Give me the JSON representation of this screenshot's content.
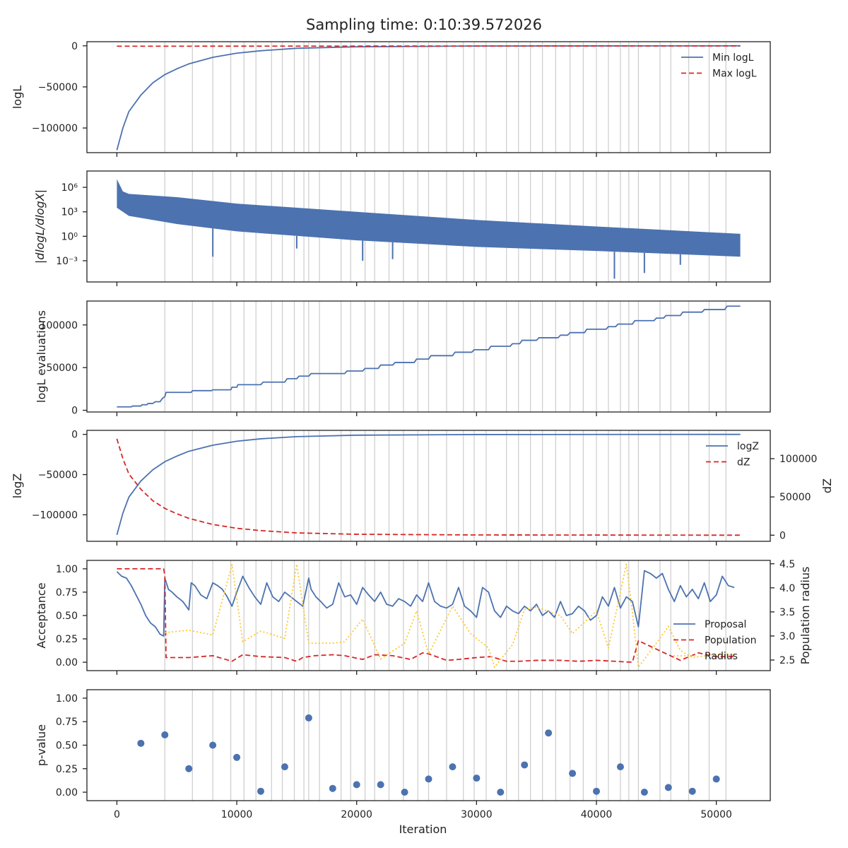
{
  "title": "Sampling time: 0:10:39.572026",
  "colors": {
    "blue": "#4c72b0",
    "red": "#d62728",
    "yellow": "#ffc72c",
    "grid": "#cccccc",
    "axis": "#222222"
  },
  "chart_data": [
    {
      "id": "logl",
      "type": "line",
      "ylabel": "logL",
      "ylim": [
        -130000,
        5000
      ],
      "yticks": [
        0,
        -50000,
        -100000
      ],
      "ytick_labels": [
        "0",
        "−50000",
        "−100000"
      ],
      "legend": {
        "position": "top-right",
        "entries": [
          "Min logL",
          "Max logL"
        ]
      },
      "series": [
        {
          "name": "Min logL",
          "style": "solid",
          "color": "#4c72b0",
          "x": [
            0,
            500,
            1000,
            2000,
            3000,
            4000,
            5000,
            6000,
            8000,
            10000,
            12000,
            15000,
            20000,
            30000,
            52000
          ],
          "y": [
            -127000,
            -100000,
            -80000,
            -60000,
            -45000,
            -35000,
            -28000,
            -22000,
            -14000,
            -9000,
            -6000,
            -3000,
            -1200,
            -300,
            0
          ]
        },
        {
          "name": "Max logL",
          "style": "dashed",
          "color": "#d62728",
          "x": [
            0,
            52000
          ],
          "y": [
            -500,
            -100
          ]
        }
      ]
    },
    {
      "id": "dlogl",
      "type": "line",
      "ylabel": "|dlogL/dlogX|",
      "yscale": "log",
      "yticks": [
        6,
        3,
        0,
        -3
      ],
      "ytick_labels": [
        "10⁶",
        "10³",
        "10⁰",
        "10⁻³"
      ],
      "band": {
        "x": [
          0,
          500,
          1000,
          5000,
          10000,
          20000,
          30000,
          40000,
          52000
        ],
        "upper_log10": [
          7,
          5.5,
          5.2,
          4.8,
          4.0,
          3.0,
          2.0,
          1.2,
          0.3
        ],
        "lower_log10": [
          3.5,
          3.0,
          2.5,
          1.5,
          0.6,
          -0.5,
          -1.3,
          -1.8,
          -2.5
        ]
      },
      "spikes": [
        {
          "x": 8000,
          "y_log10": -2.5
        },
        {
          "x": 15000,
          "y_log10": -1.5
        },
        {
          "x": 20500,
          "y_log10": -3.0
        },
        {
          "x": 23000,
          "y_log10": -2.8
        },
        {
          "x": 41500,
          "y_log10": -5.2
        },
        {
          "x": 44000,
          "y_log10": -4.5
        },
        {
          "x": 47000,
          "y_log10": -3.5
        }
      ]
    },
    {
      "id": "evals",
      "type": "line",
      "ylabel": "logL evaluations",
      "ylim": [
        -2000,
        128000
      ],
      "yticks": [
        0,
        50000,
        100000
      ],
      "ytick_labels": [
        "0",
        "50000",
        "100000"
      ],
      "series": [
        {
          "name": "",
          "color": "#4c72b0",
          "x": [
            0,
            1200,
            1300,
            2000,
            2100,
            2500,
            2600,
            3000,
            3200,
            3600,
            3800,
            4000,
            4100,
            6200,
            6300,
            7900,
            8000,
            9500,
            9600,
            10000,
            10100,
            12000,
            12200,
            14000,
            14200,
            15000,
            15200,
            16000,
            16200,
            19000,
            19200,
            20500,
            20700,
            21800,
            22000,
            23000,
            23200,
            24800,
            25000,
            26000,
            26200,
            28000,
            28200,
            29600,
            29800,
            31000,
            31200,
            32800,
            33000,
            33600,
            33800,
            35000,
            35200,
            36800,
            37000,
            37600,
            37800,
            39000,
            39200,
            40800,
            41000,
            41600,
            41800,
            43000,
            43200,
            44800,
            45000,
            45600,
            45800,
            47000,
            47200,
            48800,
            49000,
            50700,
            50900,
            52000
          ],
          "y": [
            4000,
            4000,
            5000,
            5000,
            6500,
            6500,
            8000,
            8000,
            10000,
            10000,
            14000,
            16000,
            21000,
            21000,
            23000,
            23000,
            24000,
            24000,
            27000,
            27000,
            30000,
            30000,
            33000,
            33000,
            37000,
            37000,
            40000,
            40000,
            43000,
            43000,
            46000,
            46000,
            49000,
            49000,
            53000,
            53000,
            56000,
            56000,
            60000,
            60000,
            64000,
            64000,
            68000,
            68000,
            71000,
            71000,
            75000,
            75000,
            78000,
            78000,
            82000,
            82000,
            85000,
            85000,
            88000,
            88000,
            91000,
            91000,
            95000,
            95000,
            98000,
            98000,
            101000,
            101000,
            105000,
            105000,
            108000,
            108000,
            111000,
            111000,
            115000,
            115000,
            118000,
            118000,
            122000,
            122000
          ]
        }
      ]
    },
    {
      "id": "logz",
      "type": "line",
      "ylabel": "logZ",
      "ylabel_right": "dZ",
      "ylim": [
        -133000,
        5000
      ],
      "ylim_right": [
        -8000,
        137000
      ],
      "yticks": [
        0,
        -50000,
        -100000
      ],
      "ytick_labels": [
        "0",
        "−50000",
        "−100000"
      ],
      "yticks_right": [
        0,
        50000,
        100000
      ],
      "ytick_labels_right": [
        "0",
        "50000",
        "100000"
      ],
      "legend": {
        "position": "top-right",
        "entries": [
          "logZ",
          "dZ"
        ]
      },
      "series": [
        {
          "name": "logZ",
          "style": "solid",
          "color": "#4c72b0",
          "axis": "left",
          "x": [
            0,
            500,
            1000,
            2000,
            3000,
            4000,
            5000,
            6000,
            8000,
            10000,
            12000,
            15000,
            20000,
            30000,
            52000
          ],
          "y": [
            -125000,
            -98000,
            -78000,
            -58000,
            -44000,
            -34000,
            -27000,
            -21000,
            -13500,
            -8500,
            -5500,
            -2800,
            -1000,
            -200,
            0
          ]
        },
        {
          "name": "dZ",
          "style": "dashed",
          "color": "#d62728",
          "axis": "right",
          "x": [
            0,
            500,
            1000,
            2000,
            3000,
            4000,
            5000,
            6000,
            8000,
            10000,
            12000,
            15000,
            20000,
            30000,
            52000
          ],
          "y": [
            126000,
            100000,
            80000,
            60000,
            45000,
            35000,
            28000,
            22000,
            14000,
            9000,
            6000,
            3000,
            1200,
            300,
            0
          ]
        }
      ]
    },
    {
      "id": "accept",
      "type": "line",
      "ylabel": "Acceptance",
      "ylabel_right": "Population radius",
      "ylim": [
        -0.09,
        1.09
      ],
      "ylim_right": [
        2.28,
        4.57
      ],
      "yticks": [
        0,
        0.25,
        0.5,
        0.75,
        1.0
      ],
      "ytick_labels": [
        "0.00",
        "0.25",
        "0.50",
        "0.75",
        "1.00"
      ],
      "yticks_right": [
        2.5,
        3.0,
        3.5,
        4.0,
        4.5
      ],
      "ytick_labels_right": [
        "2.5",
        "3.0",
        "3.5",
        "4.0",
        "4.5"
      ],
      "legend": {
        "position": "lower-right",
        "entries": [
          "Proposal",
          "Population",
          "Radius"
        ]
      },
      "series": [
        {
          "name": "Proposal",
          "style": "solid",
          "color": "#4c72b0",
          "axis": "left",
          "x": [
            0,
            400,
            800,
            1200,
            1600,
            2000,
            2400,
            2800,
            3200,
            3600,
            3900,
            4000,
            4300,
            4600,
            5000,
            5500,
            6000,
            6200,
            6500,
            7000,
            7500,
            8000,
            8400,
            8800,
            9200,
            9600,
            10000,
            10500,
            11000,
            11500,
            12000,
            12500,
            13000,
            13500,
            14000,
            14500,
            15000,
            15500,
            16000,
            16200,
            16600,
            17000,
            17500,
            18000,
            18500,
            19000,
            19500,
            20000,
            20500,
            21000,
            21500,
            22000,
            22500,
            23000,
            23500,
            24000,
            24500,
            25000,
            25500,
            26000,
            26500,
            27000,
            27500,
            28000,
            28500,
            29000,
            29500,
            30000,
            30500,
            31000,
            31500,
            32000,
            32500,
            33000,
            33500,
            34000,
            34500,
            35000,
            35500,
            36000,
            36500,
            37000,
            37500,
            38000,
            38500,
            39000,
            39500,
            40000,
            40500,
            41000,
            41500,
            42000,
            42500,
            43000,
            43500,
            44000,
            44500,
            45000,
            45500,
            46000,
            46500,
            47000,
            47500,
            48000,
            48500,
            49000,
            49500,
            50000,
            50500,
            51000,
            51500
          ],
          "y": [
            0.97,
            0.92,
            0.9,
            0.82,
            0.72,
            0.62,
            0.5,
            0.42,
            0.38,
            0.3,
            0.28,
            0.9,
            0.78,
            0.75,
            0.7,
            0.65,
            0.56,
            0.85,
            0.82,
            0.72,
            0.68,
            0.85,
            0.82,
            0.78,
            0.7,
            0.6,
            0.75,
            0.92,
            0.8,
            0.7,
            0.62,
            0.85,
            0.7,
            0.65,
            0.75,
            0.7,
            0.65,
            0.6,
            0.9,
            0.78,
            0.7,
            0.65,
            0.58,
            0.62,
            0.85,
            0.7,
            0.72,
            0.62,
            0.8,
            0.72,
            0.65,
            0.75,
            0.62,
            0.6,
            0.68,
            0.65,
            0.6,
            0.72,
            0.65,
            0.85,
            0.65,
            0.6,
            0.58,
            0.62,
            0.8,
            0.6,
            0.55,
            0.48,
            0.8,
            0.75,
            0.55,
            0.48,
            0.6,
            0.55,
            0.52,
            0.6,
            0.55,
            0.62,
            0.5,
            0.55,
            0.48,
            0.65,
            0.5,
            0.52,
            0.6,
            0.55,
            0.45,
            0.5,
            0.7,
            0.6,
            0.8,
            0.58,
            0.7,
            0.65,
            0.38,
            0.98,
            0.95,
            0.9,
            0.95,
            0.78,
            0.65,
            0.82,
            0.7,
            0.78,
            0.68,
            0.85,
            0.65,
            0.72,
            0.92,
            0.82,
            0.8
          ]
        },
        {
          "name": "Population",
          "style": "dashed",
          "color": "#d62728",
          "axis": "left",
          "x": [
            0,
            3900,
            4000,
            4100,
            6000,
            8000,
            9600,
            10500,
            12000,
            14000,
            15000,
            15500,
            16500,
            18000,
            19000,
            20500,
            21500,
            23000,
            24500,
            25500,
            26000,
            27500,
            28500,
            30000,
            31200,
            32500,
            33500,
            35000,
            37000,
            38500,
            40000,
            41500,
            43000,
            43500,
            44500,
            46000,
            47000,
            48500,
            50000,
            51500
          ],
          "y": [
            1.0,
            1.0,
            0.93,
            0.05,
            0.05,
            0.07,
            0.01,
            0.08,
            0.06,
            0.05,
            0.01,
            0.05,
            0.07,
            0.08,
            0.07,
            0.03,
            0.08,
            0.07,
            0.03,
            0.1,
            0.09,
            0.02,
            0.03,
            0.05,
            0.06,
            0.01,
            0.01,
            0.02,
            0.02,
            0.01,
            0.02,
            0.01,
            0.0,
            0.23,
            0.17,
            0.08,
            0.02,
            0.1,
            0.06,
            0.06
          ]
        },
        {
          "name": "Radius",
          "style": "dotted",
          "color": "#ffc72c",
          "axis": "right",
          "x": [
            4000,
            6000,
            8000,
            9600,
            10500,
            12000,
            14000,
            15000,
            16000,
            18000,
            19000,
            20500,
            22000,
            24000,
            25000,
            26000,
            28000,
            29500,
            31000,
            31500,
            33000,
            34000,
            35000,
            37000,
            38000,
            40000,
            41000,
            42500,
            43000,
            43500,
            45000,
            46000,
            47000,
            48000,
            50000,
            51500
          ],
          "y": [
            3.07,
            3.12,
            3.02,
            4.48,
            2.88,
            3.1,
            2.95,
            4.49,
            2.85,
            2.85,
            2.88,
            3.35,
            2.52,
            2.85,
            3.52,
            2.62,
            3.62,
            3.05,
            2.75,
            2.35,
            2.82,
            3.55,
            3.6,
            3.42,
            3.05,
            3.52,
            2.75,
            4.49,
            3.5,
            2.35,
            2.85,
            3.2,
            2.7,
            2.55,
            2.62,
            2.6
          ]
        }
      ]
    },
    {
      "id": "pvalue",
      "type": "scatter",
      "ylabel": "p-value",
      "xlabel": "Iteration",
      "ylim": [
        -0.09,
        1.09
      ],
      "yticks": [
        0,
        0.25,
        0.5,
        0.75,
        1.0
      ],
      "ytick_labels": [
        "0.00",
        "0.25",
        "0.50",
        "0.75",
        "1.00"
      ],
      "xticks": [
        0,
        10000,
        20000,
        30000,
        40000,
        50000
      ],
      "xtick_labels": [
        "0",
        "10000",
        "20000",
        "30000",
        "40000",
        "50000"
      ],
      "series": [
        {
          "name": "",
          "color": "#4c72b0",
          "x": [
            2000,
            4000,
            6000,
            8000,
            10000,
            12000,
            14000,
            16000,
            18000,
            20000,
            22000,
            24000,
            26000,
            28000,
            30000,
            32000,
            34000,
            36000,
            38000,
            40000,
            42000,
            44000,
            46000,
            48000,
            50000
          ],
          "y": [
            0.52,
            0.61,
            0.25,
            0.5,
            0.37,
            0.01,
            0.27,
            0.79,
            0.04,
            0.08,
            0.08,
            0.0,
            0.14,
            0.27,
            0.15,
            0.0,
            0.29,
            0.63,
            0.2,
            0.01,
            0.27,
            0.0,
            0.05,
            0.01,
            0.14
          ]
        }
      ]
    }
  ],
  "shared_x": {
    "xlim": [
      -2500,
      54500
    ],
    "vlines": [
      4000,
      6300,
      8000,
      9500,
      10600,
      11600,
      12900,
      13800,
      14800,
      15600,
      16000,
      16900,
      18700,
      19500,
      20700,
      21500,
      22700,
      23900,
      25100,
      26000,
      27500,
      28900,
      29800,
      30800,
      32500,
      33500,
      34500,
      35500,
      36600,
      37800,
      38900,
      40000,
      41000,
      42000,
      42700,
      43500,
      45300,
      46200,
      47700,
      49400,
      50800
    ]
  }
}
